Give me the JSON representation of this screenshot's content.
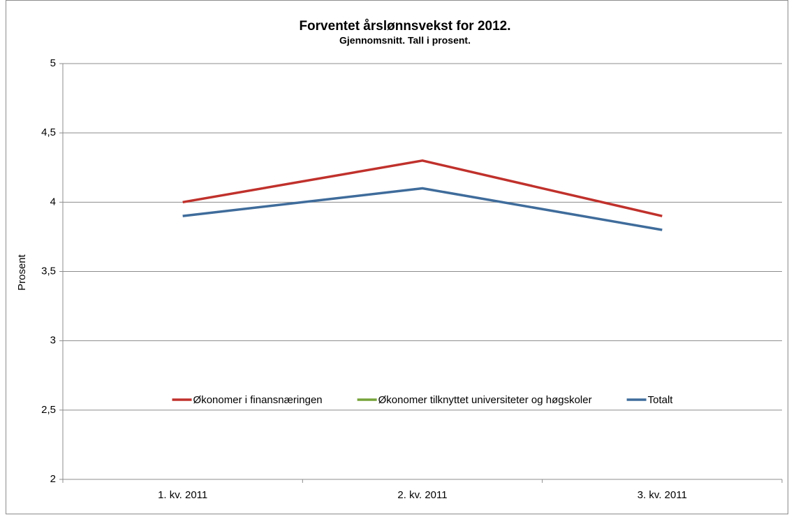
{
  "chart_data": {
    "type": "line",
    "title": "Forventet årslønnsvekst for 2012.",
    "subtitle": "Gjennomsnitt. Tall i prosent.",
    "y_label": "Prosent",
    "categories": [
      "1. kv. 2011",
      "2. kv. 2011",
      "3. kv. 2011"
    ],
    "series": [
      {
        "name": "Økonomer i finansnæringen",
        "color": "#c0312c",
        "values": [
          4.0,
          4.3,
          3.9
        ]
      },
      {
        "name": "Økonomer tilknyttet universiteter og høgskoler",
        "color": "#77a33a",
        "values": [
          null,
          null,
          null
        ]
      },
      {
        "name": "Totalt",
        "color": "#3f6c9b",
        "values": [
          3.9,
          4.1,
          3.8
        ]
      }
    ],
    "ylim": [
      2,
      5
    ],
    "yticks": [
      2,
      {
        "value": 2.5,
        "label": "2,5"
      },
      3,
      {
        "value": 3.5,
        "label": "3,5"
      },
      4,
      {
        "value": 4.5,
        "label": "4,5"
      },
      5
    ],
    "grid": true,
    "legend": "center"
  }
}
